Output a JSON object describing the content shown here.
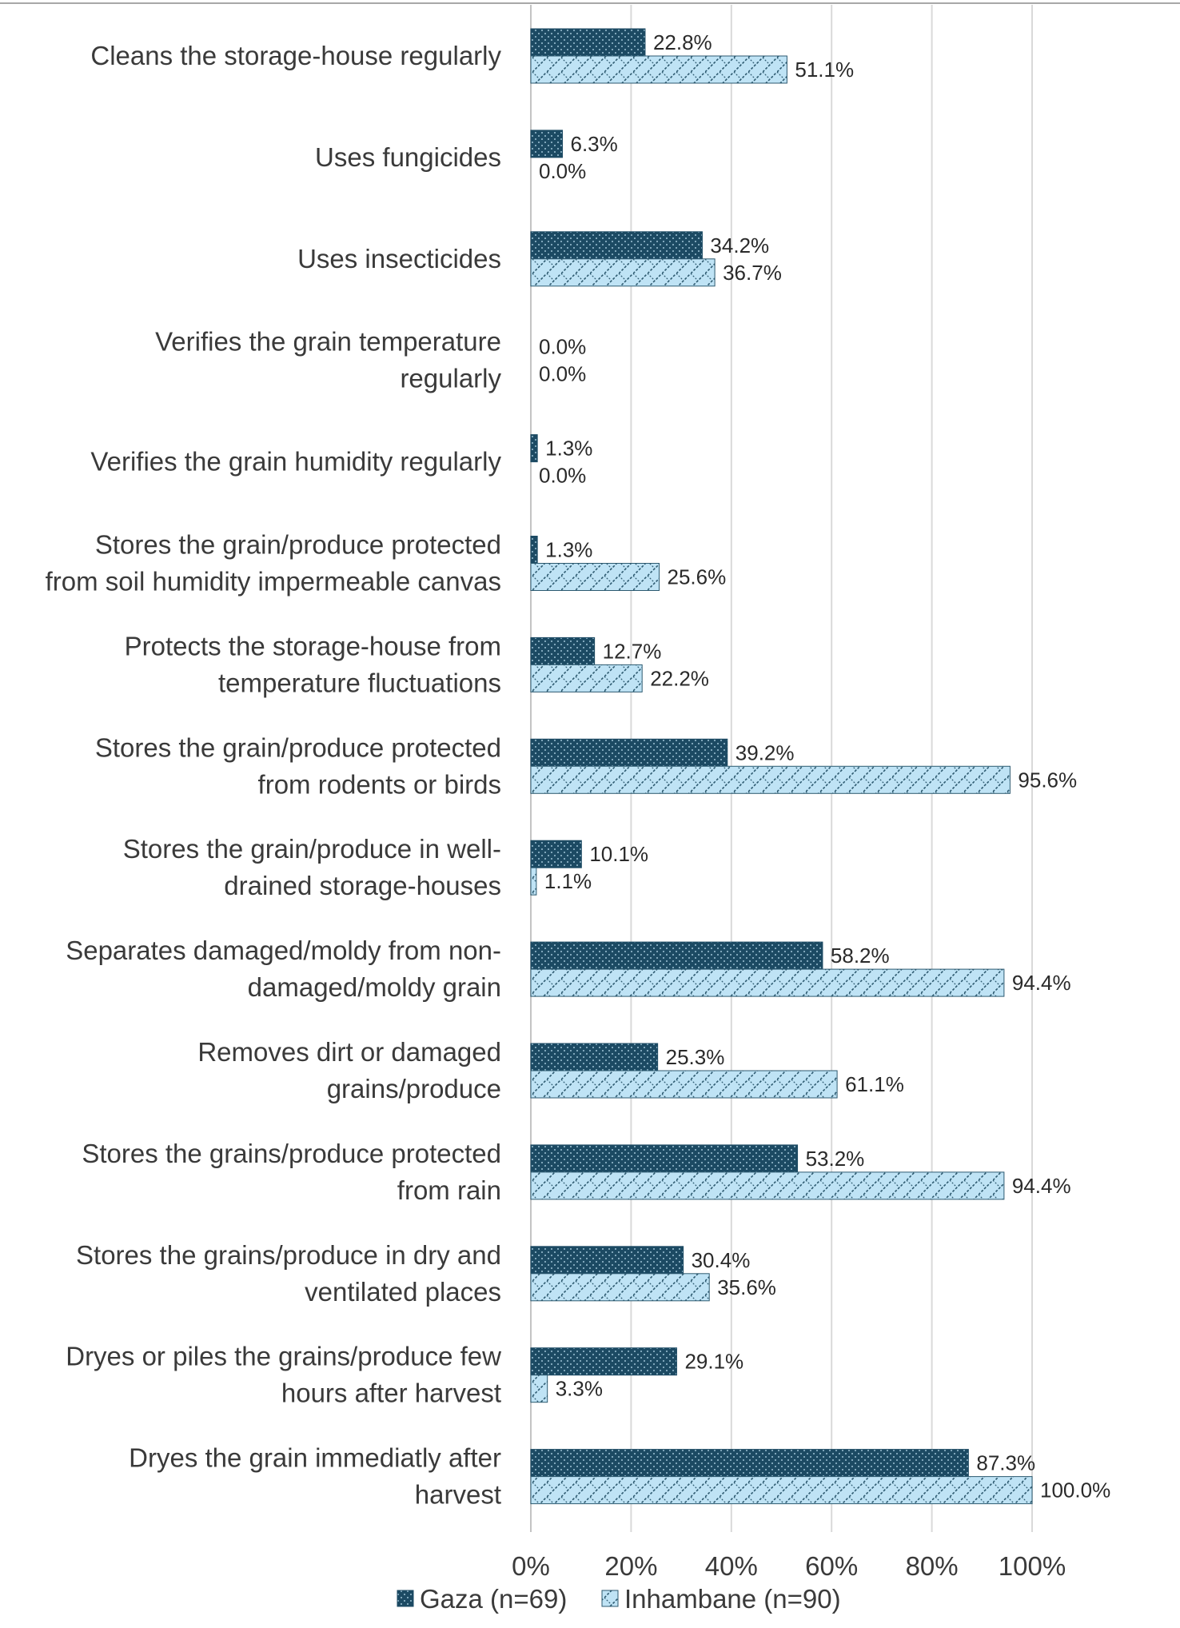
{
  "chart_data": {
    "type": "bar",
    "orientation": "horizontal",
    "title": "",
    "xlabel": "",
    "ylabel": "",
    "xlim": [
      0,
      100
    ],
    "x_ticks": [
      "0%",
      "20%",
      "40%",
      "60%",
      "80%",
      "100%"
    ],
    "grid": true,
    "legend_position": "bottom",
    "categories": [
      [
        "Cleans the storage-house regularly"
      ],
      [
        "Uses fungicides"
      ],
      [
        "Uses insecticides"
      ],
      [
        "Verifies the grain temperature",
        "regularly"
      ],
      [
        "Verifies the grain humidity regularly"
      ],
      [
        "Stores the grain/produce protected",
        "from soil humidity impermeable canvas"
      ],
      [
        "Protects the storage-house from",
        "temperature fluctuations"
      ],
      [
        "Stores the grain/produce protected",
        "from rodents or birds"
      ],
      [
        "Stores the grain/produce in well-",
        "drained storage-houses"
      ],
      [
        "Separates damaged/moldy from non-",
        "damaged/moldy grain"
      ],
      [
        "Removes dirt or damaged",
        "grains/produce"
      ],
      [
        "Stores the grains/produce protected",
        "from rain"
      ],
      [
        "Stores the grains/produce in dry and",
        "ventilated places"
      ],
      [
        "Dryes or piles the grains/produce few",
        "hours after harvest"
      ],
      [
        "Dryes the grain immediatly after",
        "harvest"
      ]
    ],
    "series": [
      {
        "name": "Gaza (n=69)",
        "color": "#1c4a63",
        "values": [
          22.8,
          6.3,
          34.2,
          0.0,
          1.3,
          1.3,
          12.7,
          39.2,
          10.1,
          58.2,
          25.3,
          53.2,
          30.4,
          29.1,
          87.3
        ],
        "labels": [
          "22.8%",
          "6.3%",
          "34.2%",
          "0.0%",
          "1.3%",
          "1.3%",
          "12.7%",
          "39.2%",
          "10.1%",
          "58.2%",
          "25.3%",
          "53.2%",
          "30.4%",
          "29.1%",
          "87.3%"
        ]
      },
      {
        "name": "Inhambane (n=90)",
        "color": "#bfe3f5",
        "values": [
          51.1,
          0.0,
          36.7,
          0.0,
          0.0,
          25.6,
          22.2,
          95.6,
          1.1,
          94.4,
          61.1,
          94.4,
          35.6,
          3.3,
          100.0
        ],
        "labels": [
          "51.1%",
          "0.0%",
          "36.7%",
          "0.0%",
          "0.0%",
          "25.6%",
          "22.2%",
          "95.6%",
          "1.1%",
          "94.4%",
          "61.1%",
          "94.4%",
          "35.6%",
          "3.3%",
          "100.0%"
        ]
      }
    ]
  }
}
